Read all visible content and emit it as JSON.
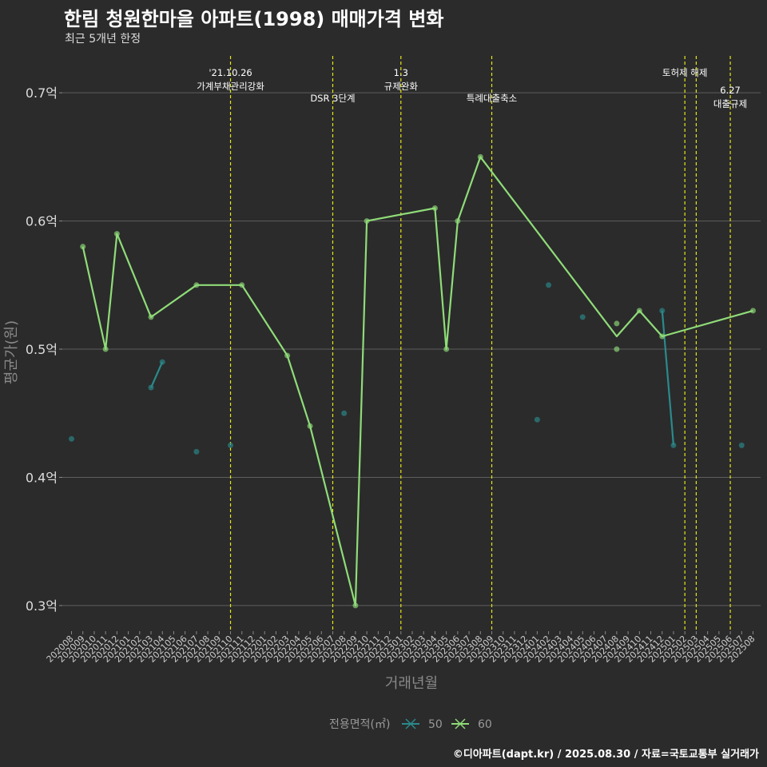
{
  "chart_data": {
    "type": "line",
    "title": "한림 청원한마을 아파트(1998) 매매가격 변화",
    "subtitle": "최근 5개년 한정",
    "xlabel": "거래년월",
    "ylabel": "평균가(원)",
    "caption": "©디아파트(dapt.kr) / 2025.08.30 / 자료=국토교통부 실거래가",
    "legend_title": "전용면적(㎡)",
    "legend_position": "bottom",
    "grid": true,
    "ylim": [
      0.28,
      0.73
    ],
    "yticks": [
      {
        "value": 0.3,
        "label": "0.3억"
      },
      {
        "value": 0.4,
        "label": "0.4억"
      },
      {
        "value": 0.5,
        "label": "0.5억"
      },
      {
        "value": 0.6,
        "label": "0.6억"
      },
      {
        "value": 0.7,
        "label": "0.7억"
      }
    ],
    "x_categories": [
      "202008",
      "202009",
      "202010",
      "202011",
      "202012",
      "202101",
      "202102",
      "202103",
      "202104",
      "202105",
      "202106",
      "202107",
      "202108",
      "202109",
      "202110",
      "202111",
      "202112",
      "202201",
      "202202",
      "202203",
      "202204",
      "202205",
      "202206",
      "202207",
      "202208",
      "202209",
      "202210",
      "202211",
      "202212",
      "202301",
      "202302",
      "202303",
      "202304",
      "202305",
      "202306",
      "202307",
      "202308",
      "202309",
      "202310",
      "202311",
      "202312",
      "202401",
      "202402",
      "202403",
      "202404",
      "202405",
      "202406",
      "202407",
      "202408",
      "202409",
      "202410",
      "202411",
      "202412",
      "202501",
      "202502",
      "202503",
      "202504",
      "202505",
      "202506",
      "202507",
      "202508"
    ],
    "series": [
      {
        "name": "50",
        "color": "#2a8a8c",
        "lines": [
          [
            [
              "202103",
              0.47
            ],
            [
              "202104",
              0.49
            ]
          ],
          [
            [
              "202412",
              0.53
            ],
            [
              "202501",
              0.425
            ]
          ]
        ],
        "points": [
          [
            "202008",
            0.43
          ],
          [
            "202103",
            0.47
          ],
          [
            "202104",
            0.49
          ],
          [
            "202107",
            0.42
          ],
          [
            "202110",
            0.425
          ],
          [
            "202208",
            0.45
          ],
          [
            "202401",
            0.445
          ],
          [
            "202402",
            0.55
          ],
          [
            "202405",
            0.525
          ],
          [
            "202412",
            0.53
          ],
          [
            "202501",
            0.425
          ],
          [
            "202507",
            0.425
          ]
        ]
      },
      {
        "name": "60",
        "color": "#8fdc78",
        "lines": [
          [
            [
              "202009",
              0.58
            ],
            [
              "202011",
              0.5
            ],
            [
              "202012",
              0.59
            ],
            [
              "202103",
              0.525
            ],
            [
              "202107",
              0.55
            ],
            [
              "202111",
              0.55
            ],
            [
              "202203",
              0.495
            ],
            [
              "202205",
              0.44
            ],
            [
              "202209",
              0.3
            ],
            [
              "202210",
              0.6
            ],
            [
              "202304",
              0.61
            ],
            [
              "202305",
              0.5
            ],
            [
              "202306",
              0.6
            ],
            [
              "202308",
              0.65
            ],
            [
              "202408",
              0.51
            ],
            [
              "202410",
              0.53
            ],
            [
              "202412",
              0.51
            ],
            [
              "202508",
              0.53
            ]
          ]
        ],
        "points": [
          [
            "202009",
            0.58
          ],
          [
            "202011",
            0.5
          ],
          [
            "202012",
            0.59
          ],
          [
            "202103",
            0.525
          ],
          [
            "202107",
            0.55
          ],
          [
            "202111",
            0.55
          ],
          [
            "202203",
            0.495
          ],
          [
            "202205",
            0.44
          ],
          [
            "202209",
            0.3
          ],
          [
            "202210",
            0.6
          ],
          [
            "202304",
            0.61
          ],
          [
            "202305",
            0.5
          ],
          [
            "202306",
            0.6
          ],
          [
            "202308",
            0.65
          ],
          [
            "202408",
            0.52
          ],
          [
            "202408",
            0.5
          ],
          [
            "202410",
            0.53
          ],
          [
            "202412",
            0.51
          ],
          [
            "202508",
            0.53
          ]
        ]
      }
    ],
    "annotations": [
      {
        "x": "202110",
        "lines": [
          "'21.10.26",
          "가계부채관리강화"
        ],
        "level": 1
      },
      {
        "x": "202207",
        "lines": [
          "DSR 3단계"
        ],
        "level": 2
      },
      {
        "x": "202301",
        "lines": [
          "1.3",
          "규제완화"
        ],
        "level": 1
      },
      {
        "x": "202309",
        "lines": [
          "특례대출축소"
        ],
        "level": 2
      },
      {
        "x": "202502",
        "lines": [
          "토허제 해제"
        ],
        "level": 1
      },
      {
        "x": "202503",
        "lines": [],
        "level": 1
      },
      {
        "x": "202506",
        "lines": [
          "6.27",
          "대출규제"
        ],
        "level": 3
      }
    ],
    "annotation_color": "#e6e619"
  }
}
